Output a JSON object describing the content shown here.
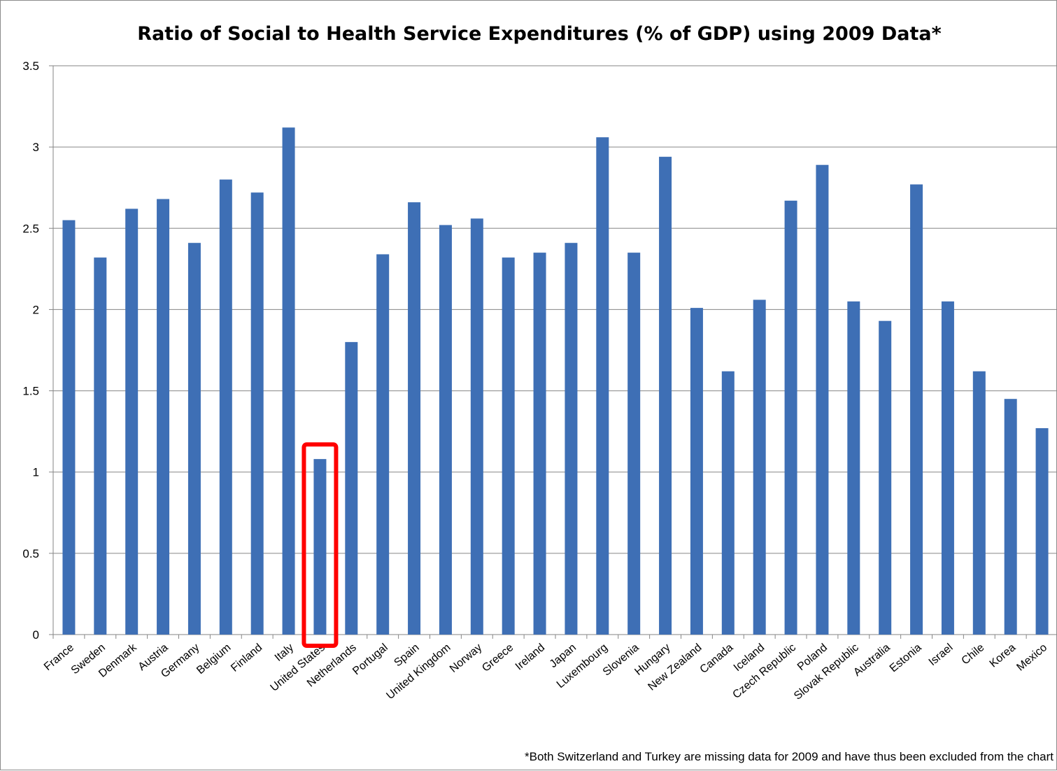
{
  "chart_data": {
    "type": "bar",
    "title": "Ratio of Social to Health Service Expenditures (% of GDP) using 2009 Data*",
    "xlabel": "",
    "ylabel": "",
    "ylim": [
      0,
      3.5
    ],
    "yticks": [
      "0",
      "0.5",
      "1",
      "1.5",
      "2",
      "2.5",
      "3",
      "3.5"
    ],
    "grid": true,
    "legend": "none",
    "bar_color": "#3E6FB5",
    "highlight": {
      "category": "United States",
      "color": "#FF0000"
    },
    "categories": [
      "France",
      "Sweden",
      "Denmark",
      "Austria",
      "Germany",
      "Belgium",
      "Finland",
      "Italy",
      "United States",
      "Netherlands",
      "Portugal",
      "Spain",
      "United Kingdom",
      "Norway",
      "Greece",
      "Ireland",
      "Japan",
      "Luxembourg",
      "Slovenia",
      "Hungary",
      "New Zealand",
      "Canada",
      "Iceland",
      "Czech Republic",
      "Poland",
      "Slovak Republic",
      "Australia",
      "Estonia",
      "Israel",
      "Chile",
      "Korea",
      "Mexico"
    ],
    "values": [
      2.55,
      2.32,
      2.62,
      2.68,
      2.41,
      2.8,
      2.72,
      3.12,
      1.08,
      1.8,
      2.34,
      2.66,
      2.52,
      2.56,
      2.32,
      2.35,
      2.41,
      3.06,
      2.35,
      2.94,
      2.01,
      1.62,
      2.06,
      2.67,
      2.89,
      2.05,
      1.93,
      2.77,
      2.05,
      1.62,
      1.45,
      1.27
    ],
    "footnote": "*Both Switzerland and Turkey are missing data for 2009 and have thus been excluded from the chart"
  }
}
